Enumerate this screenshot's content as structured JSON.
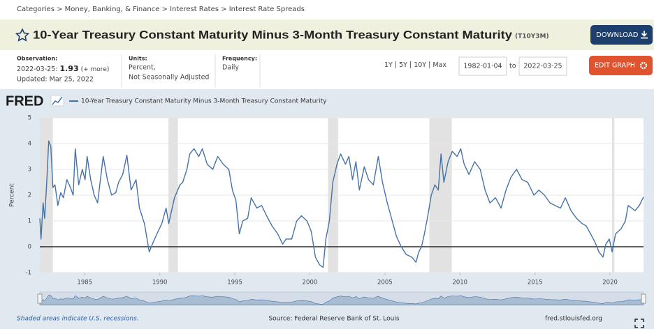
{
  "breadcrumb": [
    "Categories",
    "Money, Banking, & Finance",
    "Interest Rates",
    "Interest Rate Spreads"
  ],
  "header": {
    "title": "10-Year Treasury Constant Maturity Minus 3-Month Treasury Constant Maturity",
    "series_id": "(T10Y3M)",
    "download": "DOWNLOAD"
  },
  "info": {
    "observation_label": "Observation:",
    "observation_date": "2022-03-25:",
    "observation_value": "1.93",
    "more": "(+ more)",
    "updated": "Updated: Mar 25, 2022",
    "units_label": "Units:",
    "units": [
      "Percent,",
      "Not Seasonally Adjusted"
    ],
    "frequency_label": "Frequency:",
    "frequency": "Daily",
    "ranges": [
      "1Y",
      "5Y",
      "10Y",
      "Max"
    ],
    "start_date": "1982-01-04",
    "to": "to",
    "end_date": "2022-03-25",
    "edit": "EDIT GRAPH"
  },
  "chart_data": {
    "type": "line",
    "logo": "FRED",
    "ylabel": "Percent",
    "xlim": [
      1982.01,
      2022.23
    ],
    "xticks": [
      1985,
      1990,
      1995,
      2000,
      2005,
      2010,
      2015,
      2020
    ],
    "ylim": [
      -1,
      5
    ],
    "yticks": [
      -1,
      0,
      1,
      2,
      3,
      4,
      5
    ],
    "grid": true,
    "shaded_periods": [
      [
        1982.01,
        1982.88
      ],
      [
        1990.58,
        1991.21
      ],
      [
        2001.21,
        2001.88
      ],
      [
        2007.96,
        2009.46
      ],
      [
        2020.13,
        2020.29
      ]
    ],
    "x": [
      1982.01,
      1982.09,
      1982.23,
      1982.33,
      1982.47,
      1982.6,
      1982.74,
      1982.88,
      1983.02,
      1983.21,
      1983.4,
      1983.58,
      1983.81,
      1984.05,
      1984.23,
      1984.37,
      1984.6,
      1984.84,
      1985.02,
      1985.16,
      1985.4,
      1985.63,
      1985.86,
      1986.23,
      1986.51,
      1986.79,
      1987.07,
      1987.26,
      1987.53,
      1987.81,
      1988.09,
      1988.42,
      1988.65,
      1988.98,
      1989.3,
      1989.58,
      1989.81,
      1990.14,
      1990.42,
      1990.6,
      1990.98,
      1991.35,
      1991.53,
      1991.81,
      1992.0,
      1992.28,
      1992.6,
      1992.84,
      1993.16,
      1993.53,
      1993.86,
      1994.23,
      1994.6,
      1994.84,
      1995.07,
      1995.3,
      1995.53,
      1995.86,
      1996.09,
      1996.47,
      1996.79,
      1997.12,
      1997.49,
      1997.86,
      1998.19,
      1998.42,
      1998.79,
      1999.12,
      1999.44,
      1999.81,
      2000.09,
      2000.37,
      2000.65,
      2000.88,
      2001.07,
      2001.3,
      2001.53,
      2001.81,
      2002.05,
      2002.37,
      2002.6,
      2002.84,
      2003.07,
      2003.3,
      2003.63,
      2003.91,
      2004.23,
      2004.56,
      2004.84,
      2005.16,
      2005.49,
      2005.77,
      2006.09,
      2006.42,
      2006.79,
      2007.07,
      2007.26,
      2007.44,
      2007.63,
      2007.86,
      2008.09,
      2008.33,
      2008.56,
      2008.74,
      2008.93,
      2009.21,
      2009.49,
      2009.81,
      2010.05,
      2010.28,
      2010.6,
      2010.98,
      2011.35,
      2011.67,
      2012.0,
      2012.37,
      2012.74,
      2013.07,
      2013.4,
      2013.77,
      2014.14,
      2014.51,
      2014.93,
      2015.26,
      2015.63,
      2016.0,
      2016.33,
      2016.7,
      2017.02,
      2017.4,
      2017.77,
      2018.14,
      2018.42,
      2018.7,
      2018.98,
      2019.26,
      2019.53,
      2019.72,
      2019.95,
      2020.14,
      2020.37,
      2020.74,
      2021.02,
      2021.21,
      2021.44,
      2021.67,
      2021.95,
      2022.23
    ],
    "series": [
      {
        "name": "10-Year Treasury Constant Maturity Minus 3-Month Treasury Constant Maturity",
        "color": "#4572a7",
        "values": [
          1.1,
          0.3,
          1.7,
          1.1,
          2.5,
          4.1,
          3.9,
          2.3,
          2.4,
          1.6,
          2.1,
          1.9,
          2.6,
          2.3,
          2.0,
          3.8,
          2.4,
          3.0,
          2.6,
          3.5,
          2.6,
          2.0,
          1.7,
          3.5,
          2.6,
          2.0,
          2.1,
          2.5,
          2.8,
          3.55,
          2.2,
          2.6,
          1.5,
          0.9,
          -0.2,
          0.2,
          0.5,
          0.9,
          1.5,
          0.9,
          1.9,
          2.4,
          2.5,
          3.0,
          3.6,
          3.8,
          3.5,
          3.8,
          3.2,
          3.0,
          3.5,
          3.2,
          3.0,
          2.2,
          1.8,
          0.5,
          1.0,
          1.1,
          1.9,
          1.5,
          1.6,
          1.2,
          0.8,
          0.5,
          0.1,
          0.3,
          0.3,
          1.0,
          1.2,
          1.0,
          0.6,
          -0.4,
          -0.7,
          -0.8,
          0.3,
          1.0,
          2.5,
          3.2,
          3.6,
          3.2,
          3.5,
          2.6,
          3.3,
          2.2,
          3.1,
          2.6,
          2.4,
          3.5,
          2.5,
          1.7,
          1.0,
          0.4,
          0.0,
          -0.3,
          -0.4,
          -0.6,
          -0.2,
          0.0,
          0.5,
          1.2,
          2.0,
          2.4,
          2.2,
          3.6,
          2.5,
          3.3,
          3.7,
          3.5,
          3.8,
          3.2,
          2.8,
          3.3,
          3.0,
          2.2,
          1.7,
          1.9,
          1.5,
          2.2,
          2.7,
          3.0,
          2.6,
          2.5,
          2.0,
          2.2,
          2.0,
          1.7,
          1.6,
          1.5,
          1.9,
          1.4,
          1.1,
          0.9,
          0.8,
          0.5,
          0.2,
          -0.2,
          -0.4,
          0.1,
          0.3,
          -0.2,
          0.5,
          0.7,
          1.0,
          1.6,
          1.5,
          1.4,
          1.6,
          1.93
        ]
      }
    ]
  },
  "footer": {
    "note": "Shaded areas indicate U.S. recessions.",
    "source": "Source: Federal Reserve Bank of St. Louis",
    "site": "fred.stlouisfed.org"
  }
}
